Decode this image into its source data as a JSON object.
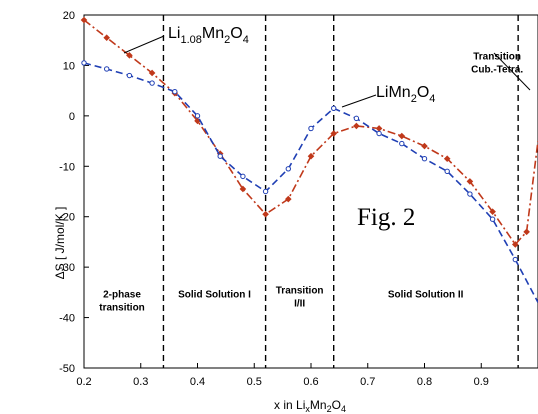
{
  "chart_data": {
    "type": "line",
    "title": "",
    "xlabel": "x in Li",
    "xlabel_parts": {
      "lead": "x in Li",
      "sub1": "x",
      "mid": "Mn",
      "sub2": "2",
      "mid2": "O",
      "sub3": "4"
    },
    "ylabel": "ΔS [ J/mol/K ]",
    "xlim": [
      0.2,
      1.0
    ],
    "ylim": [
      -50,
      20
    ],
    "xticks": [
      0.2,
      0.3,
      0.4,
      0.5,
      0.6,
      0.7,
      0.8,
      0.9
    ],
    "xtick_labels": [
      "0.2",
      "0.3",
      "0.4",
      "0.5",
      "0.6",
      "0.7",
      "0.8",
      "0.9"
    ],
    "yticks": [
      -50,
      -40,
      -30,
      -20,
      -10,
      0,
      10,
      20
    ],
    "ytick_labels": [
      "-50",
      "-40",
      "-30",
      "-20",
      "-10",
      "0",
      "10",
      "20"
    ],
    "grid": false,
    "colors": {
      "red_series": "#c0391b",
      "blue_series": "#1f3fb4",
      "dividers": "#000000"
    },
    "series": [
      {
        "name": "Li1.08Mn2O4",
        "color": "#c0391b",
        "style": "dash-dot",
        "marker": "filled-diamond",
        "x": [
          0.2,
          0.24,
          0.28,
          0.32,
          0.36,
          0.4,
          0.44,
          0.48,
          0.52,
          0.56,
          0.6,
          0.64,
          0.68,
          0.72,
          0.76,
          0.8,
          0.84,
          0.88,
          0.92,
          0.96,
          0.98,
          1.0
        ],
        "y": [
          19,
          15.5,
          12,
          8.5,
          4.5,
          -1,
          -7.5,
          -14.5,
          -19.5,
          -16.5,
          -8,
          -3.5,
          -2,
          -2.5,
          -4,
          -6,
          -8.5,
          -13,
          -19,
          -25.5,
          -23,
          -5
        ]
      },
      {
        "name": "LiMn2O4",
        "color": "#1f3fb4",
        "style": "dashed",
        "marker": "open-circle",
        "x": [
          0.2,
          0.24,
          0.28,
          0.32,
          0.36,
          0.4,
          0.44,
          0.48,
          0.52,
          0.56,
          0.6,
          0.64,
          0.68,
          0.72,
          0.76,
          0.8,
          0.84,
          0.88,
          0.92,
          0.96,
          1.0
        ],
        "y": [
          10.5,
          9.3,
          8,
          6.5,
          4.8,
          0,
          -8,
          -12,
          -15,
          -10.5,
          -2.5,
          1.5,
          -0.5,
          -3.5,
          -5.5,
          -8.5,
          -11,
          -15.5,
          -20.5,
          -28.5,
          -37
        ]
      }
    ],
    "dividers_x": [
      0.34,
      0.52,
      0.64,
      0.965
    ],
    "regions": [
      {
        "lines": [
          "2-phase",
          "transition"
        ],
        "x": 0.267,
        "y": -36
      },
      {
        "lines": [
          "Solid Solution I"
        ],
        "x": 0.43,
        "y": -36
      },
      {
        "lines": [
          "Transition",
          "I/II"
        ],
        "x": 0.58,
        "y": -35.2
      },
      {
        "lines": [
          "Solid Solution II"
        ],
        "x": 0.802,
        "y": -36
      },
      {
        "lines": [
          "Transition",
          "Cub.-Tetra."
        ],
        "x": 0.928,
        "y": 11.2
      }
    ],
    "annotations": {
      "li108_label": {
        "main": "Li",
        "sub1": "1.08",
        "mid": "Mn",
        "sub2": "2",
        "mid2": "O",
        "sub3": "4"
      },
      "limn2o4_label": {
        "main": "LiMn",
        "sub1": "2",
        "mid": "O",
        "sub2": "4"
      },
      "figure_label": "Fig. 2"
    }
  }
}
